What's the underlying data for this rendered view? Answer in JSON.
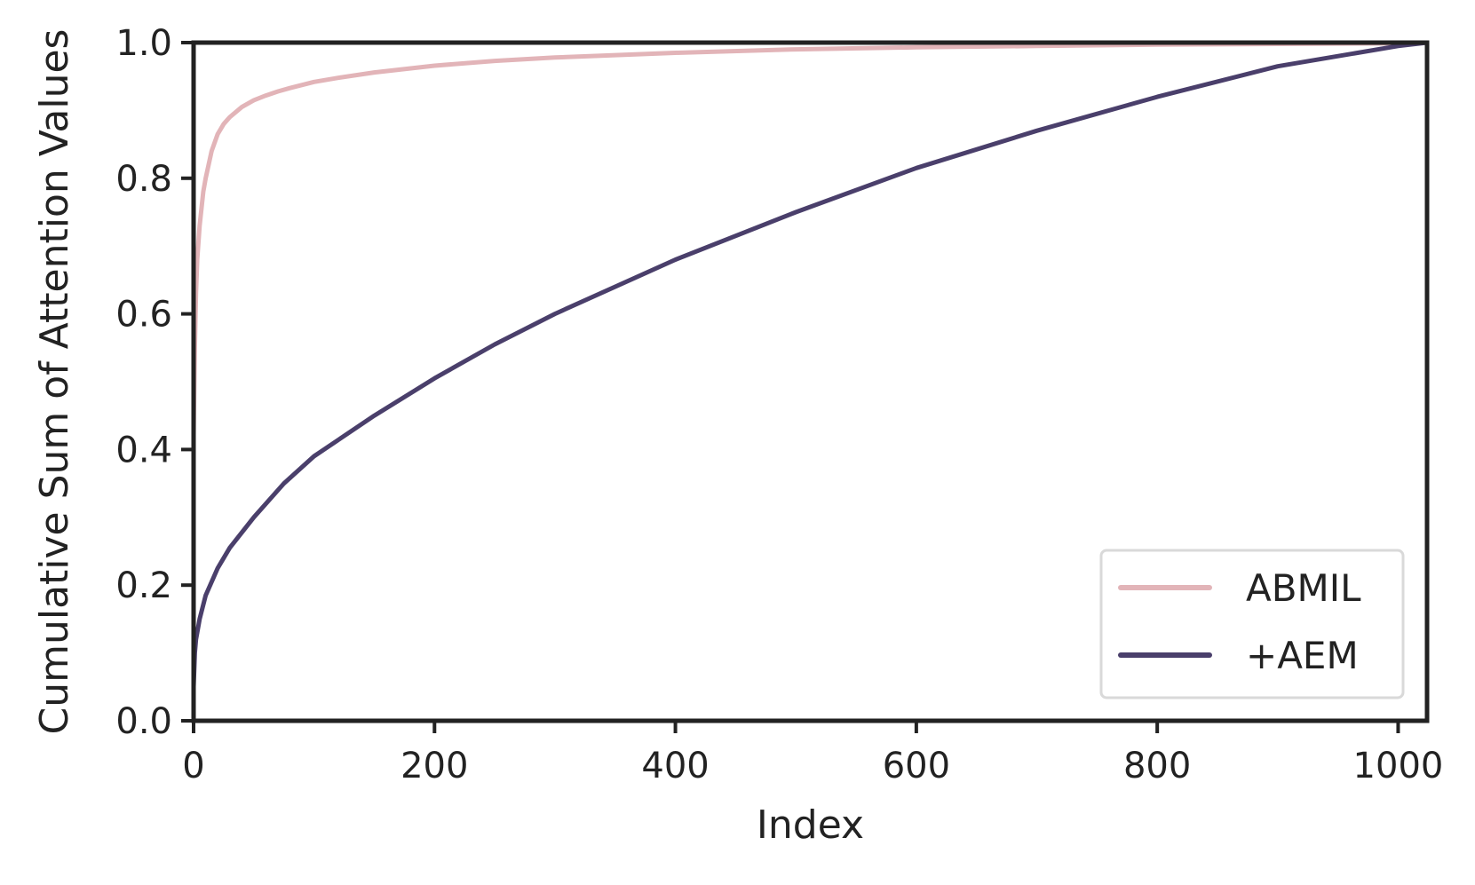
{
  "chart_data": {
    "type": "line",
    "xlabel": "Index",
    "ylabel": "Cumulative Sum of Attention Values",
    "xlim": [
      0,
      1024
    ],
    "ylim": [
      0,
      1.0
    ],
    "xticks": [
      0,
      200,
      400,
      600,
      800,
      1000
    ],
    "xtick_labels": [
      "0",
      "200",
      "400",
      "600",
      "800",
      "1000"
    ],
    "yticks": [
      0.0,
      0.2,
      0.4,
      0.6,
      0.8,
      1.0
    ],
    "ytick_labels": [
      "0.0",
      "0.2",
      "0.4",
      "0.6",
      "0.8",
      "1.0"
    ],
    "grid": false,
    "legend_position": "lower-right",
    "series": [
      {
        "name": "ABMIL",
        "color": "#e2b4b8",
        "x": [
          0,
          1,
          2,
          3,
          5,
          8,
          10,
          15,
          20,
          25,
          30,
          40,
          50,
          60,
          70,
          80,
          100,
          120,
          150,
          200,
          250,
          300,
          400,
          500,
          600,
          700,
          800,
          900,
          1000,
          1024
        ],
        "y": [
          0.42,
          0.55,
          0.63,
          0.68,
          0.73,
          0.78,
          0.8,
          0.84,
          0.865,
          0.88,
          0.89,
          0.905,
          0.915,
          0.922,
          0.928,
          0.933,
          0.942,
          0.948,
          0.956,
          0.966,
          0.973,
          0.978,
          0.985,
          0.99,
          0.993,
          0.995,
          0.997,
          0.998,
          0.999,
          1.0
        ]
      },
      {
        "name": "+AEM",
        "color": "#4a3f6b",
        "x": [
          0,
          1,
          2,
          5,
          10,
          20,
          30,
          50,
          75,
          100,
          150,
          200,
          250,
          300,
          400,
          500,
          600,
          700,
          800,
          900,
          1000,
          1024
        ],
        "y": [
          0.05,
          0.1,
          0.12,
          0.15,
          0.185,
          0.225,
          0.255,
          0.3,
          0.35,
          0.39,
          0.45,
          0.505,
          0.555,
          0.6,
          0.68,
          0.75,
          0.815,
          0.87,
          0.92,
          0.965,
          0.995,
          1.0
        ]
      }
    ]
  }
}
